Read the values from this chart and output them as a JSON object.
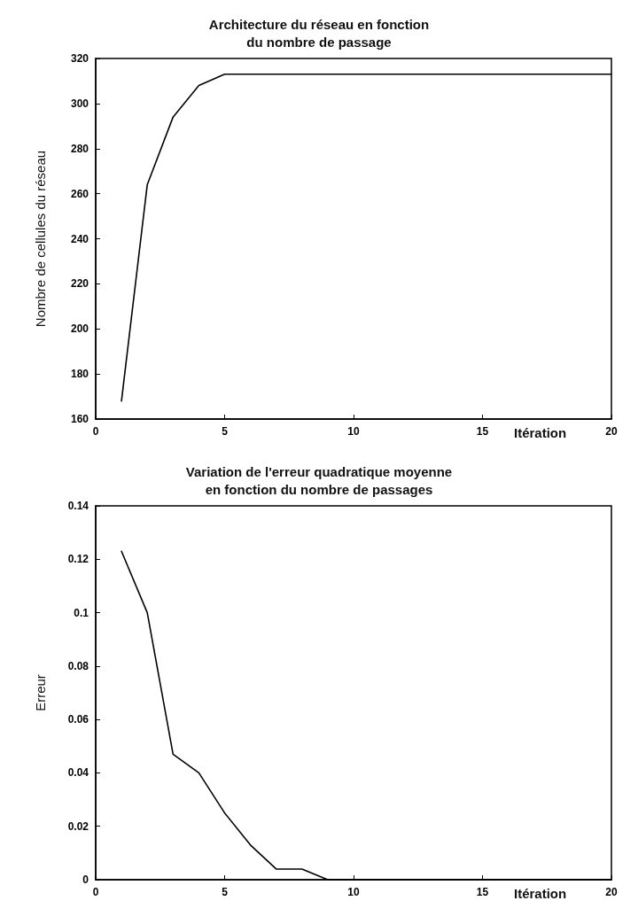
{
  "chart_data": [
    {
      "type": "line",
      "title": "Architecture du réseau en fonction\ndu nombre de passage",
      "xlabel": "Itération",
      "ylabel": "Nombre de cellules du réseau",
      "x": [
        1,
        2,
        3,
        4,
        5,
        6,
        7,
        8,
        9,
        10,
        11,
        12,
        13,
        14,
        15,
        16,
        17,
        18,
        19,
        20
      ],
      "series": [
        {
          "color": "#000000",
          "values": [
            168,
            264,
            294,
            308,
            313,
            313,
            313,
            313,
            313,
            313,
            313,
            313,
            313,
            313,
            313,
            313,
            313,
            313,
            313,
            313
          ]
        }
      ],
      "xlim": [
        0,
        20
      ],
      "xticks": [
        0,
        5,
        10,
        15,
        20
      ],
      "ylim": [
        160,
        320
      ],
      "yticks": [
        160,
        180,
        200,
        220,
        240,
        260,
        280,
        300,
        320
      ],
      "grid": false,
      "marker": "none",
      "line_style": "solid"
    },
    {
      "type": "line",
      "title": "Variation de l'erreur quadratique moyenne\nen fonction du nombre de passages",
      "xlabel": "Itération",
      "ylabel": "Erreur",
      "x": [
        1,
        2,
        3,
        4,
        5,
        6,
        7,
        8,
        9,
        10,
        11,
        12,
        13,
        14,
        15,
        16,
        17,
        18,
        19,
        20
      ],
      "series": [
        {
          "color": "#000000",
          "values": [
            0.123,
            0.1,
            0.047,
            0.04,
            0.025,
            0.013,
            0.004,
            0.004,
            0,
            0,
            0,
            0,
            0,
            0,
            0,
            0,
            0,
            0,
            0,
            0
          ]
        }
      ],
      "xlim": [
        0,
        20
      ],
      "xticks": [
        0,
        5,
        10,
        15,
        20
      ],
      "ylim": [
        0,
        0.14
      ],
      "yticks": [
        0,
        0.02,
        0.04,
        0.06,
        0.08,
        0.1,
        0.12,
        0.14
      ],
      "grid": false,
      "marker": "none",
      "line_style": "solid"
    }
  ]
}
